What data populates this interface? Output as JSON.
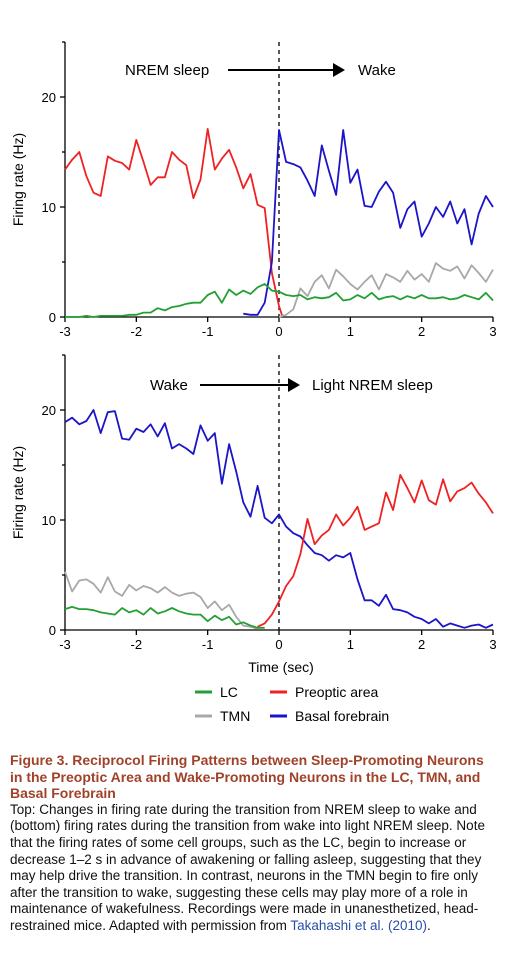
{
  "caption": {
    "title": "Figure 3.  Reciprocol Firing Patterns between Sleep-Promoting Neurons in the Preoptic Area and Wake-Promoting Neurons in the LC, TMN, and Basal Forebrain",
    "body": "Top: Changes in firing rate during the transition from NREM sleep to wake and (bottom) firing rates during the transition from wake into light NREM sleep. Note that the firing rates of some cell groups, such as the LC, begin to increase or decrease 1–2 s in advance of awakening or falling asleep, suggesting that they may help drive the transition. In contrast, neurons in the TMN begin to fire only after the transition to wake, suggesting these cells may play more of a role in maintenance of wakefulness. Recordings were made in unanesthetized, head-restrained mice. Adapted with permission from ",
    "citation": "Takahashi et al. (2010)",
    "end": "."
  },
  "colors": {
    "LC": "#22a033",
    "TMN": "#a8a8a8",
    "Preoptic area": "#ee2222",
    "Basal forebrain": "#1c14c8",
    "caption_title": "#a0422a",
    "citation": "#2a4fa8"
  },
  "legend": {
    "placement": "bottom",
    "entries": [
      "LC",
      "TMN",
      "Preoptic area",
      "Basal forebrain"
    ]
  },
  "chart_data": [
    {
      "type": "line",
      "title": "",
      "xlabel": "",
      "ylabel": "Firing rate (Hz)",
      "xlim": [
        -3,
        3
      ],
      "ylim": [
        0,
        25
      ],
      "xticks": [
        "-3",
        "-2",
        "-1",
        "0",
        "1",
        "2",
        "3"
      ],
      "yticks": [
        "0",
        "10",
        "20"
      ],
      "annotation": {
        "from": "NREM sleep",
        "to": "Wake"
      },
      "vline_x": 0,
      "series": [
        {
          "name": "Preoptic area",
          "x": [
            -3,
            -2.9,
            -2.8,
            -2.7,
            -2.6,
            -2.5,
            -2.4,
            -2.3,
            -2.2,
            -2.1,
            -2.0,
            -1.9,
            -1.8,
            -1.7,
            -1.6,
            -1.5,
            -1.4,
            -1.3,
            -1.2,
            -1.1,
            -1.0,
            -0.9,
            -0.8,
            -0.7,
            -0.6,
            -0.5,
            -0.4,
            -0.3,
            -0.2,
            -0.1,
            0.0,
            0.05
          ],
          "y": [
            13.4,
            14.3,
            15.0,
            12.8,
            11.3,
            11.0,
            14.6,
            14.2,
            14.0,
            13.4,
            16.1,
            14.1,
            12.0,
            12.7,
            12.7,
            15.0,
            14.3,
            13.8,
            10.8,
            12.5,
            17.1,
            13.4,
            14.4,
            15.2,
            13.6,
            11.7,
            13.0,
            10.2,
            9.9,
            4.0,
            1.0,
            0.0
          ]
        },
        {
          "name": "Basal forebrain",
          "x": [
            -0.5,
            -0.4,
            -0.3,
            -0.2,
            -0.1,
            0.0,
            0.1,
            0.2,
            0.3,
            0.4,
            0.5,
            0.6,
            0.7,
            0.8,
            0.9,
            1.0,
            1.1,
            1.2,
            1.3,
            1.4,
            1.5,
            1.6,
            1.7,
            1.8,
            1.9,
            2.0,
            2.1,
            2.2,
            2.3,
            2.4,
            2.5,
            2.6,
            2.7,
            2.8,
            2.9,
            3.0
          ],
          "y": [
            0.3,
            0.2,
            0.2,
            1.3,
            5.0,
            17.0,
            14.1,
            13.9,
            13.6,
            12.4,
            11.0,
            15.6,
            13.3,
            11.1,
            17.0,
            12.2,
            13.4,
            10.1,
            10.0,
            11.4,
            12.3,
            11.3,
            8.1,
            9.8,
            10.5,
            7.3,
            8.5,
            10.0,
            9.1,
            10.5,
            8.5,
            9.8,
            6.6,
            9.4,
            11.0,
            10.0
          ]
        },
        {
          "name": "TMN",
          "x": [
            0.0,
            0.1,
            0.2,
            0.3,
            0.4,
            0.5,
            0.6,
            0.7,
            0.8,
            0.9,
            1.0,
            1.1,
            1.2,
            1.3,
            1.4,
            1.5,
            1.6,
            1.7,
            1.8,
            1.9,
            2.0,
            2.1,
            2.2,
            2.3,
            2.4,
            2.5,
            2.6,
            2.7,
            2.8,
            2.9,
            3.0
          ],
          "y": [
            0.0,
            0.2,
            0.7,
            2.6,
            1.9,
            3.2,
            3.8,
            2.6,
            4.3,
            3.7,
            3.0,
            2.5,
            3.2,
            3.8,
            2.5,
            3.9,
            3.6,
            3.2,
            4.2,
            3.4,
            3.9,
            3.2,
            4.9,
            4.4,
            4.2,
            4.6,
            3.5,
            4.7,
            4.0,
            3.2,
            4.3
          ]
        },
        {
          "name": "LC",
          "x": [
            -3,
            -2.9,
            -2.8,
            -2.7,
            -2.6,
            -2.5,
            -2.4,
            -2.3,
            -2.2,
            -2.1,
            -2.0,
            -1.9,
            -1.8,
            -1.7,
            -1.6,
            -1.5,
            -1.4,
            -1.3,
            -1.2,
            -1.1,
            -1.0,
            -0.9,
            -0.8,
            -0.7,
            -0.6,
            -0.5,
            -0.4,
            -0.3,
            -0.2,
            -0.1,
            0.0,
            0.1,
            0.2,
            0.3,
            0.4,
            0.5,
            0.6,
            0.7,
            0.8,
            0.9,
            1.0,
            1.1,
            1.2,
            1.3,
            1.4,
            1.5,
            1.6,
            1.7,
            1.8,
            1.9,
            2.0,
            2.1,
            2.2,
            2.3,
            2.4,
            2.5,
            2.6,
            2.7,
            2.8,
            2.9,
            3.0
          ],
          "y": [
            0.0,
            0.0,
            0.0,
            0.1,
            0.0,
            0.1,
            0.1,
            0.1,
            0.1,
            0.2,
            0.2,
            0.4,
            0.4,
            0.8,
            0.6,
            0.9,
            1.0,
            1.2,
            1.3,
            1.3,
            2.0,
            2.3,
            1.3,
            2.5,
            2.0,
            2.4,
            2.1,
            2.7,
            3.0,
            2.4,
            2.3,
            2.0,
            1.9,
            2.0,
            1.6,
            1.8,
            1.7,
            1.8,
            2.2,
            1.5,
            1.6,
            2.0,
            1.7,
            2.2,
            1.6,
            1.8,
            1.9,
            1.6,
            1.9,
            1.7,
            2.0,
            1.7,
            1.7,
            1.8,
            1.6,
            1.7,
            2.0,
            1.8,
            1.6,
            2.2,
            1.5
          ]
        }
      ]
    },
    {
      "type": "line",
      "title": "",
      "xlabel": "Time (sec)",
      "ylabel": "Firing rate (Hz)",
      "xlim": [
        -3,
        3
      ],
      "ylim": [
        0,
        25
      ],
      "xticks": [
        "-3",
        "-2",
        "-1",
        "0",
        "1",
        "2",
        "3"
      ],
      "yticks": [
        "0",
        "10",
        "20"
      ],
      "annotation": {
        "from": "Wake",
        "to": "Light NREM sleep"
      },
      "vline_x": 0,
      "series": [
        {
          "name": "Basal forebrain",
          "x": [
            -3,
            -2.9,
            -2.8,
            -2.7,
            -2.6,
            -2.5,
            -2.4,
            -2.3,
            -2.2,
            -2.1,
            -2.0,
            -1.9,
            -1.8,
            -1.7,
            -1.6,
            -1.5,
            -1.4,
            -1.3,
            -1.2,
            -1.1,
            -1.0,
            -0.9,
            -0.8,
            -0.7,
            -0.6,
            -0.5,
            -0.4,
            -0.3,
            -0.2,
            -0.1,
            0.0,
            0.1,
            0.2,
            0.3,
            0.4,
            0.5,
            0.6,
            0.7,
            0.8,
            0.9,
            1.0,
            1.1,
            1.2,
            1.3,
            1.4,
            1.5,
            1.6,
            1.7,
            1.8,
            1.9,
            2.0,
            2.1,
            2.2,
            2.3,
            2.4,
            2.5,
            2.6,
            2.7,
            2.8,
            2.9,
            3.0
          ],
          "y": [
            18.9,
            19.3,
            18.7,
            19.0,
            20.0,
            17.9,
            19.8,
            19.9,
            17.4,
            17.3,
            18.3,
            18.0,
            18.7,
            17.6,
            18.8,
            16.5,
            16.9,
            16.5,
            16.0,
            18.6,
            17.2,
            17.9,
            13.3,
            16.9,
            14.4,
            11.6,
            10.3,
            13.1,
            10.2,
            9.7,
            10.5,
            9.4,
            8.8,
            8.5,
            7.7,
            7.0,
            6.8,
            6.3,
            6.8,
            6.6,
            7.0,
            4.6,
            2.7,
            2.7,
            2.2,
            3.2,
            1.9,
            1.8,
            1.6,
            1.2,
            1.0,
            0.6,
            1.0,
            0.3,
            0.6,
            0.4,
            0.2,
            0.4,
            0.5,
            0.2,
            0.5
          ]
        },
        {
          "name": "TMN",
          "x": [
            -3,
            -2.9,
            -2.8,
            -2.7,
            -2.6,
            -2.5,
            -2.4,
            -2.3,
            -2.2,
            -2.1,
            -2.0,
            -1.9,
            -1.8,
            -1.7,
            -1.6,
            -1.5,
            -1.4,
            -1.3,
            -1.2,
            -1.1,
            -1.0,
            -0.9,
            -0.8,
            -0.7,
            -0.6,
            -0.5,
            -0.4,
            -0.3
          ],
          "y": [
            5.3,
            3.5,
            4.5,
            4.6,
            4.2,
            3.4,
            4.8,
            3.5,
            3.1,
            4.1,
            3.6,
            4.0,
            3.8,
            3.4,
            3.9,
            3.4,
            3.1,
            3.3,
            3.4,
            3.0,
            2.0,
            2.6,
            1.8,
            2.3,
            1.2,
            0.4,
            0.3,
            0.1
          ]
        },
        {
          "name": "Preoptic area",
          "x": [
            -0.3,
            -0.2,
            -0.1,
            0.0,
            0.1,
            0.2,
            0.3,
            0.4,
            0.5,
            0.6,
            0.7,
            0.8,
            0.9,
            1.0,
            1.1,
            1.2,
            1.3,
            1.4,
            1.5,
            1.6,
            1.7,
            1.8,
            1.9,
            2.0,
            2.1,
            2.2,
            2.3,
            2.4,
            2.5,
            2.6,
            2.7,
            2.8,
            2.9,
            3.0
          ],
          "y": [
            0.3,
            0.6,
            1.4,
            2.6,
            4.0,
            4.9,
            6.9,
            10.1,
            7.8,
            8.6,
            9.1,
            10.5,
            9.5,
            10.2,
            11.2,
            9.1,
            9.4,
            9.7,
            12.5,
            10.9,
            14.1,
            12.9,
            11.6,
            13.6,
            11.8,
            11.4,
            13.7,
            11.7,
            12.6,
            12.9,
            13.4,
            12.4,
            11.6,
            10.6
          ]
        },
        {
          "name": "LC",
          "x": [
            -3,
            -2.9,
            -2.8,
            -2.7,
            -2.6,
            -2.5,
            -2.4,
            -2.3,
            -2.2,
            -2.1,
            -2.0,
            -1.9,
            -1.8,
            -1.7,
            -1.6,
            -1.5,
            -1.4,
            -1.3,
            -1.2,
            -1.1,
            -1.0,
            -0.9,
            -0.8,
            -0.7,
            -0.6,
            -0.5,
            -0.4,
            -0.3,
            -0.2
          ],
          "y": [
            1.9,
            2.1,
            1.9,
            1.9,
            1.8,
            1.6,
            1.5,
            1.4,
            2.0,
            1.6,
            1.8,
            1.4,
            2.0,
            1.5,
            1.7,
            2.0,
            1.7,
            1.5,
            1.4,
            1.4,
            0.8,
            1.3,
            0.9,
            1.2,
            0.5,
            0.7,
            0.4,
            0.2,
            0.2
          ]
        }
      ]
    }
  ]
}
